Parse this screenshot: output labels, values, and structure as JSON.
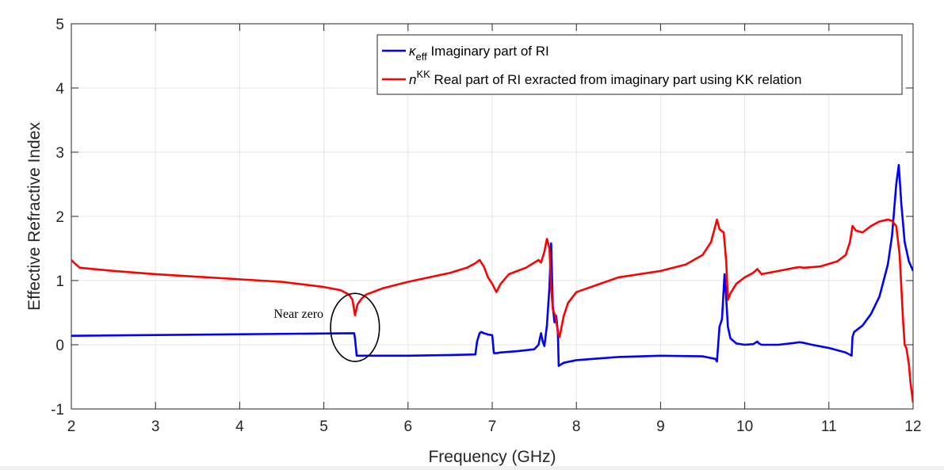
{
  "chart_data": {
    "type": "line",
    "title": "",
    "xlabel": "Frequency (GHz)",
    "ylabel": "Effective Refractive Index",
    "xlim": [
      2,
      12
    ],
    "ylim": [
      -1,
      5
    ],
    "x_ticks": [
      "2",
      "3",
      "4",
      "5",
      "6",
      "7",
      "8",
      "9",
      "10",
      "11",
      "12"
    ],
    "y_ticks": [
      "-1",
      "0",
      "1",
      "2",
      "3",
      "4",
      "5"
    ],
    "grid": true,
    "legend_position": "top-right",
    "colors": {
      "kappa": "#0000ff",
      "nkk": "#ff0000",
      "grid": "#e6e6e6",
      "axis": "#262626"
    },
    "legend": {
      "kappa": {
        "symbol": "κ",
        "subscript": "eff",
        "text": " Imaginary part of RI"
      },
      "nkk": {
        "symbol": "n",
        "superscript": "KK",
        "text": " Real part of RI exracted from imaginary part using KK relation"
      }
    },
    "annotation": {
      "text": "Near zero",
      "x": 4.7,
      "y": 0.47,
      "ellipse_center": [
        5.37,
        0.27
      ],
      "ellipse_radii": [
        0.29,
        0.53
      ]
    },
    "series": [
      {
        "key": "kappa",
        "x": [
          2.0,
          5.36,
          5.37,
          5.39,
          5.42,
          6.0,
          6.5,
          6.8,
          6.82,
          6.85,
          6.87,
          6.9,
          6.95,
          7.0,
          7.02,
          7.05,
          7.1,
          7.3,
          7.5,
          7.55,
          7.58,
          7.6,
          7.62,
          7.65,
          7.68,
          7.7,
          7.72,
          7.74,
          7.76,
          7.78,
          7.79,
          7.8,
          7.85,
          8.0,
          8.5,
          9.0,
          9.5,
          9.65,
          9.67,
          9.7,
          9.73,
          9.76,
          9.78,
          9.8,
          9.83,
          9.9,
          10.0,
          10.1,
          10.15,
          10.17,
          10.2,
          10.4,
          10.6,
          10.65,
          10.7,
          10.8,
          11.0,
          11.2,
          11.27,
          11.28,
          11.3,
          11.4,
          11.5,
          11.6,
          11.7,
          11.75,
          11.8,
          11.83,
          11.86,
          11.9,
          11.95,
          12.0
        ],
        "y": [
          0.14,
          0.18,
          0.1,
          -0.17,
          -0.17,
          -0.17,
          -0.16,
          -0.15,
          0.05,
          0.18,
          0.2,
          0.18,
          0.16,
          0.15,
          -0.13,
          -0.13,
          -0.12,
          -0.1,
          -0.07,
          0.0,
          0.18,
          0.05,
          -0.02,
          0.3,
          0.9,
          1.58,
          0.6,
          0.35,
          0.45,
          0.2,
          -0.33,
          -0.32,
          -0.28,
          -0.24,
          -0.19,
          -0.17,
          -0.18,
          -0.22,
          -0.26,
          0.28,
          0.4,
          1.1,
          0.72,
          0.28,
          0.1,
          0.02,
          0.0,
          0.01,
          0.05,
          0.02,
          0.0,
          0.0,
          0.03,
          0.04,
          0.03,
          0.0,
          -0.05,
          -0.12,
          -0.17,
          0.12,
          0.2,
          0.3,
          0.48,
          0.75,
          1.25,
          1.7,
          2.5,
          2.8,
          2.2,
          1.6,
          1.3,
          1.15
        ]
      },
      {
        "key": "nkk",
        "x": [
          2.0,
          2.03,
          2.1,
          2.5,
          3.0,
          3.5,
          4.0,
          4.5,
          5.0,
          5.2,
          5.3,
          5.34,
          5.37,
          5.4,
          5.45,
          5.5,
          5.7,
          6.0,
          6.5,
          6.7,
          6.8,
          6.85,
          6.9,
          6.95,
          7.0,
          7.05,
          7.1,
          7.2,
          7.4,
          7.55,
          7.58,
          7.62,
          7.65,
          7.68,
          7.7,
          7.72,
          7.75,
          7.78,
          7.8,
          7.85,
          7.9,
          8.0,
          8.5,
          9.0,
          9.3,
          9.5,
          9.6,
          9.65,
          9.67,
          9.7,
          9.72,
          9.75,
          9.78,
          9.8,
          9.83,
          9.9,
          10.0,
          10.1,
          10.15,
          10.2,
          10.4,
          10.6,
          10.65,
          10.7,
          10.9,
          11.1,
          11.2,
          11.25,
          11.28,
          11.32,
          11.4,
          11.5,
          11.6,
          11.7,
          11.75,
          11.8,
          11.84,
          11.88,
          11.9,
          11.92,
          11.95,
          11.97,
          12.0
        ],
        "y": [
          1.32,
          1.28,
          1.2,
          1.15,
          1.1,
          1.06,
          1.02,
          0.98,
          0.9,
          0.85,
          0.78,
          0.7,
          0.46,
          0.63,
          0.72,
          0.78,
          0.88,
          0.98,
          1.12,
          1.2,
          1.27,
          1.32,
          1.22,
          1.05,
          0.95,
          0.82,
          0.95,
          1.1,
          1.2,
          1.32,
          1.28,
          1.45,
          1.65,
          1.5,
          0.9,
          0.55,
          0.45,
          0.2,
          0.12,
          0.45,
          0.65,
          0.82,
          1.05,
          1.15,
          1.25,
          1.4,
          1.6,
          1.85,
          1.95,
          1.8,
          1.78,
          1.75,
          1.3,
          0.7,
          0.8,
          0.95,
          1.05,
          1.12,
          1.18,
          1.1,
          1.15,
          1.2,
          1.21,
          1.2,
          1.22,
          1.3,
          1.4,
          1.6,
          1.85,
          1.78,
          1.75,
          1.85,
          1.92,
          1.95,
          1.93,
          1.85,
          1.4,
          0.4,
          0.0,
          -0.05,
          -0.3,
          -0.6,
          -0.9
        ]
      }
    ]
  }
}
